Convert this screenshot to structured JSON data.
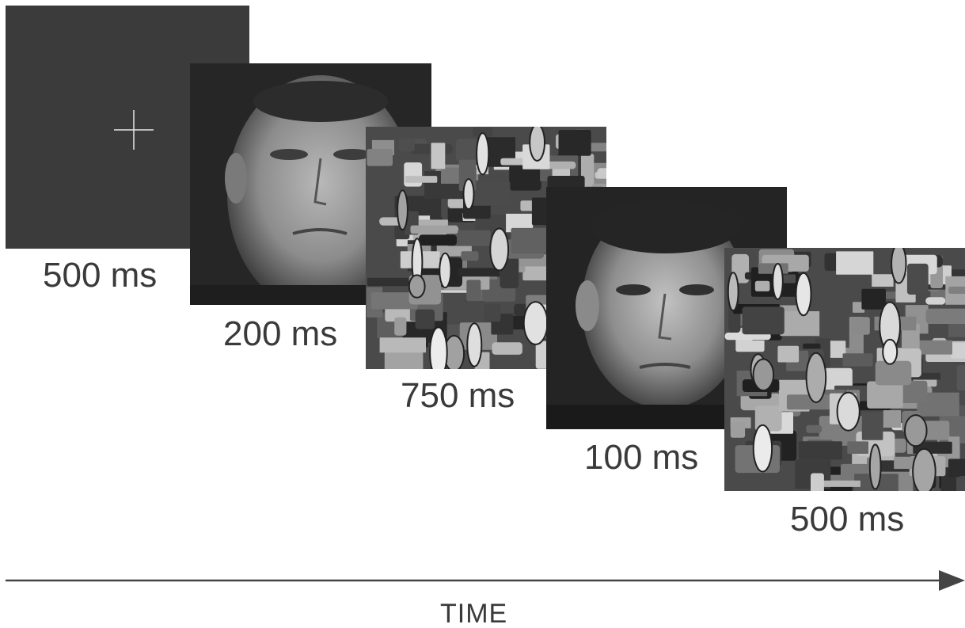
{
  "frames": [
    {
      "id": "fixation",
      "duration_label": "500 ms",
      "content": "fixation-cross"
    },
    {
      "id": "face1",
      "duration_label": "200 ms",
      "content": "face"
    },
    {
      "id": "mask1",
      "duration_label": "750 ms",
      "content": "scrambled-face-mask"
    },
    {
      "id": "face2",
      "duration_label": "100 ms",
      "content": "face"
    },
    {
      "id": "mask2",
      "duration_label": "500 ms",
      "content": "scrambled-face-mask"
    }
  ],
  "axis": {
    "label": "TIME"
  },
  "colors": {
    "text": "#3a3a3a",
    "fixation_bg": "#3b3b3b",
    "face_bg": "#262626",
    "mask_bg": "#4a4a4a",
    "arrow": "#444444"
  }
}
